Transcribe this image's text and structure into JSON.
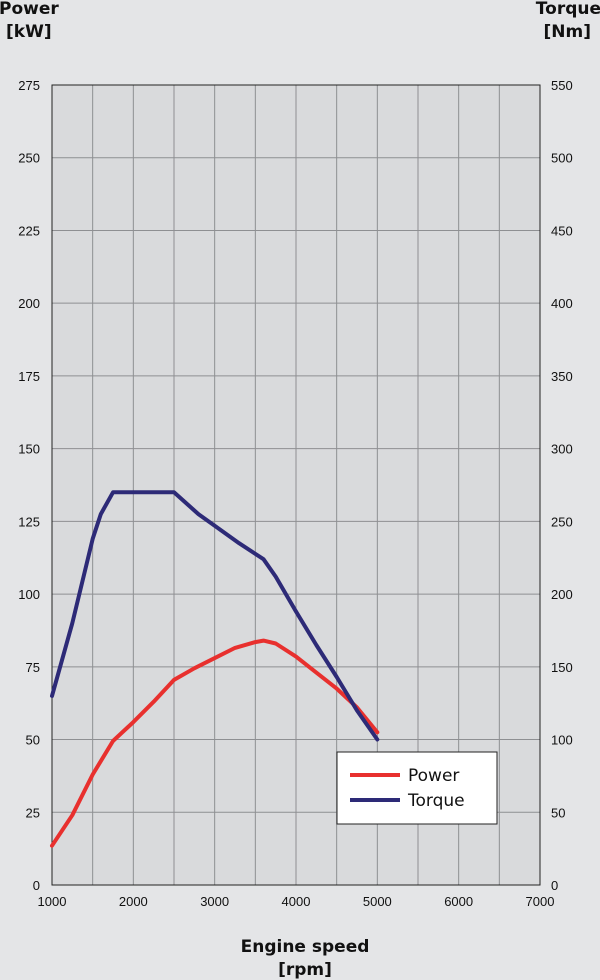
{
  "chart_data": {
    "type": "line",
    "xlabel": "Engine speed",
    "xunit": "[rpm]",
    "y_left_label": "Power",
    "y_left_unit": "[kW]",
    "y_right_label": "Torque",
    "y_right_unit": "[Nm]",
    "xlim": [
      1000,
      7000
    ],
    "x_ticks": [
      1000,
      2000,
      3000,
      4000,
      5000,
      6000,
      7000
    ],
    "ylim_left": [
      0,
      275
    ],
    "y_left_ticks": [
      0,
      25,
      50,
      75,
      100,
      125,
      150,
      175,
      200,
      225,
      250,
      275
    ],
    "ylim_right": [
      0,
      550
    ],
    "y_right_ticks": [
      0,
      50,
      100,
      150,
      200,
      250,
      300,
      350,
      400,
      450,
      500,
      550
    ],
    "grid": true,
    "legend_position": "bottom-right",
    "series": [
      {
        "name": "Power",
        "axis": "left",
        "color": "#e8302e",
        "x": [
          1000,
          1250,
          1500,
          1750,
          2000,
          2250,
          2500,
          2750,
          3000,
          3250,
          3500,
          3600,
          3750,
          4000,
          4250,
          4500,
          4750,
          5000
        ],
        "values": [
          13.5,
          24,
          38,
          49.5,
          56,
          63,
          70.5,
          74.5,
          78,
          81.5,
          83.5,
          84,
          83,
          78.5,
          73,
          67.5,
          61,
          52.5
        ]
      },
      {
        "name": "Torque",
        "axis": "right",
        "color": "#2d2a77",
        "x": [
          1000,
          1250,
          1500,
          1600,
          1750,
          2000,
          2250,
          2500,
          2800,
          3000,
          3300,
          3600,
          3750,
          4000,
          4250,
          4500,
          4750,
          5000
        ],
        "values": [
          130,
          180,
          238,
          255,
          270,
          270,
          270,
          270,
          255,
          247,
          235,
          224,
          212,
          188,
          165,
          143,
          120,
          100
        ]
      }
    ]
  }
}
